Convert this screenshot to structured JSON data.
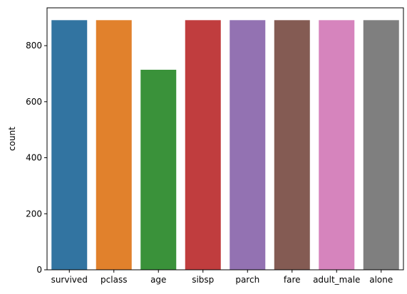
{
  "chart_data": {
    "type": "bar",
    "title": "",
    "xlabel": "",
    "ylabel": "count",
    "categories": [
      "survived",
      "pclass",
      "age",
      "sibsp",
      "parch",
      "fare",
      "adult_male",
      "alone"
    ],
    "values": [
      891,
      891,
      714,
      891,
      891,
      891,
      891,
      891
    ],
    "colors": [
      "#3274a1",
      "#e1812c",
      "#3a923a",
      "#c03d3e",
      "#9372b2",
      "#845b53",
      "#d684bd",
      "#7f7f7f"
    ],
    "ylim": [
      0,
      935
    ],
    "yticks": [
      0,
      200,
      400,
      600,
      800
    ],
    "grid": false
  }
}
